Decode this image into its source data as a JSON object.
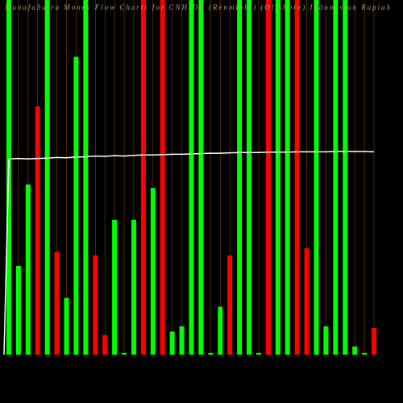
{
  "chart_data": {
    "type": "bar",
    "title": "MunafaSutra Money Flow Charts for CNHIDR (Renminbi) (Offshore) Indonesian Rupiah",
    "ylim": [
      0,
      100
    ],
    "grid": true,
    "grid_color": "#7a4200",
    "line_color": "#ffffff",
    "series": [
      {
        "name": "Money Flow",
        "colors": [
          "#00ff00",
          "#00ff00",
          "#00ff00",
          "#ff0000",
          "#00ff00",
          "#ff0000",
          "#00ff00",
          "#00ff00",
          "#00ff00",
          "#ff0000",
          "#ff0000",
          "#00ff00",
          "#00ff00",
          "#00ff00",
          "#ff0000",
          "#00ff00",
          "#ff0000",
          "#00ff00",
          "#00ff00",
          "#00ff00",
          "#00ff00",
          "#00ff00",
          "#00ff00",
          "#ff0000",
          "#00ff00",
          "#00ff00",
          "#00ff00",
          "#ff0000",
          "#00ff00",
          "#00ff00",
          "#ff0000",
          "#ff0000",
          "#00ff00",
          "#00ff00",
          "#00ff00",
          "#00ff00",
          "#00ff00",
          "#00ff00",
          "#ff0000"
        ],
        "values": [
          100,
          25,
          48,
          70,
          100,
          29,
          16,
          84,
          100,
          28,
          5.5,
          38,
          0.5,
          38,
          100,
          47,
          100,
          6.5,
          8,
          100,
          100,
          0.5,
          13.5,
          28,
          100,
          100,
          0.5,
          100,
          100,
          100,
          100,
          30,
          100,
          8,
          100,
          100,
          2.3,
          0.5,
          7.5
        ]
      },
      {
        "name": "Price",
        "values": [
          55.2,
          55.3,
          55.2,
          55.3,
          55.4,
          55.6,
          55.5,
          55.7,
          55.8,
          56.0,
          55.9,
          56.1,
          56.0,
          56.2,
          56.3,
          56.3,
          56.4,
          56.5,
          56.5,
          56.6,
          56.7,
          56.8,
          56.8,
          56.9,
          57.0,
          57.0,
          57.0,
          57.1,
          57.1,
          57.1,
          57.2,
          57.2,
          57.2,
          57.2,
          57.3,
          57.3,
          57.3,
          57.3,
          57.2
        ]
      }
    ]
  }
}
